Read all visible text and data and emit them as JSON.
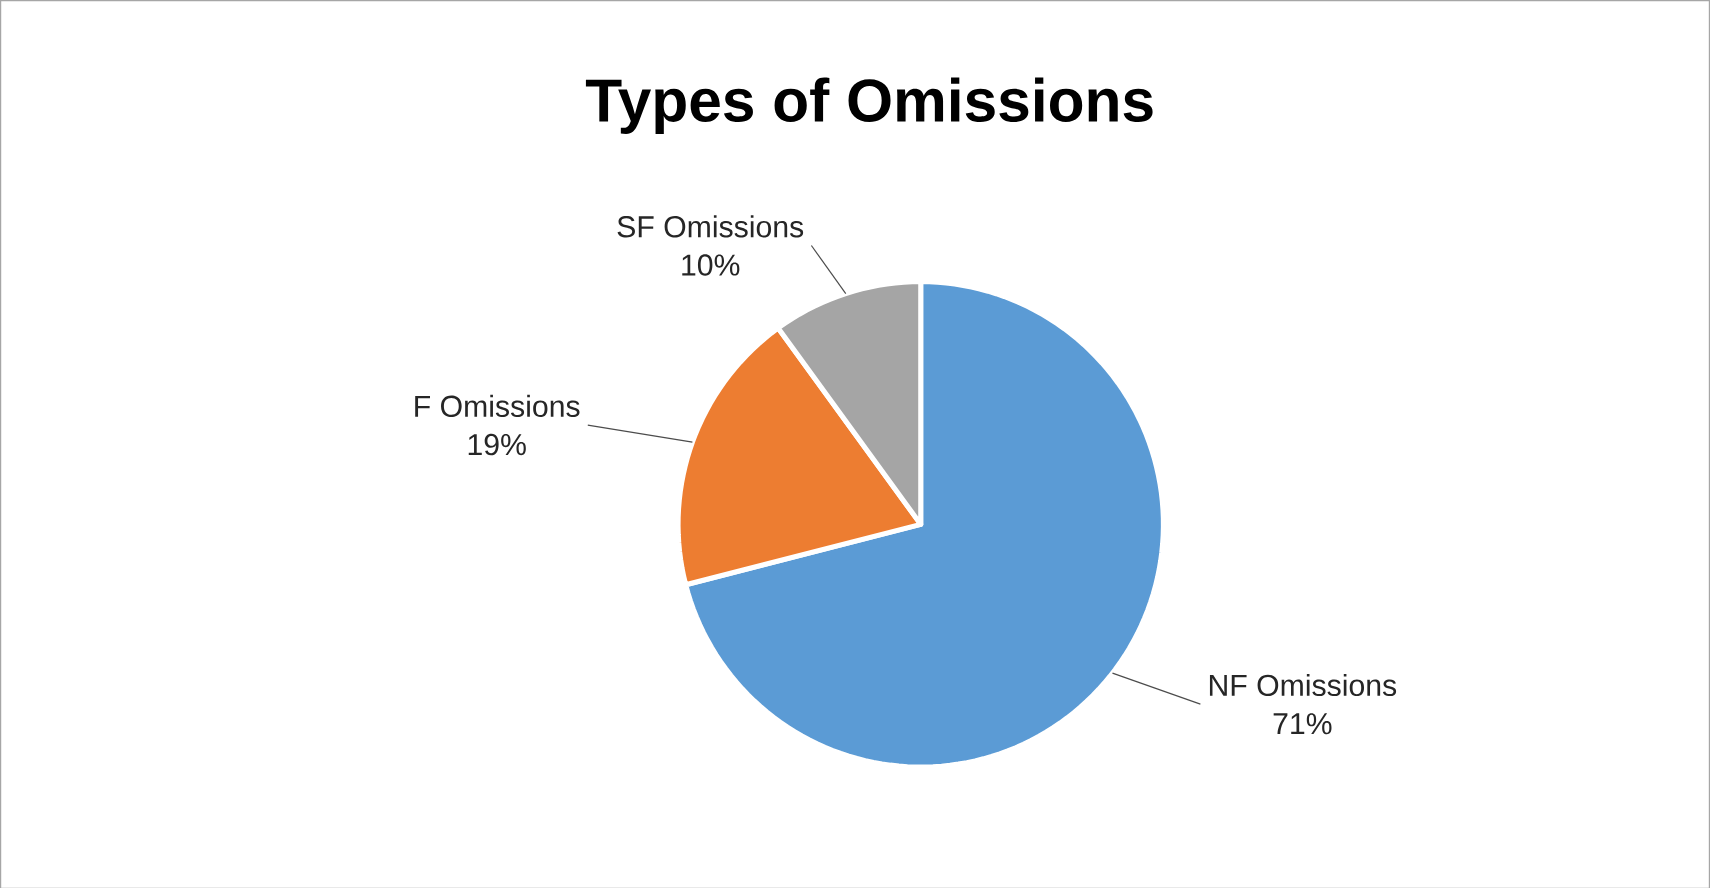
{
  "chart_data": {
    "type": "pie",
    "title": "Types of Omissions",
    "categories": [
      "NF Omissions",
      "F Omissions",
      "SF Omissions"
    ],
    "values": [
      71,
      19,
      10
    ],
    "value_labels": [
      "71%",
      "19%",
      "10%"
    ],
    "colors": [
      "#5b9bd5",
      "#ed7d31",
      "#a5a5a5"
    ],
    "legend": false
  }
}
